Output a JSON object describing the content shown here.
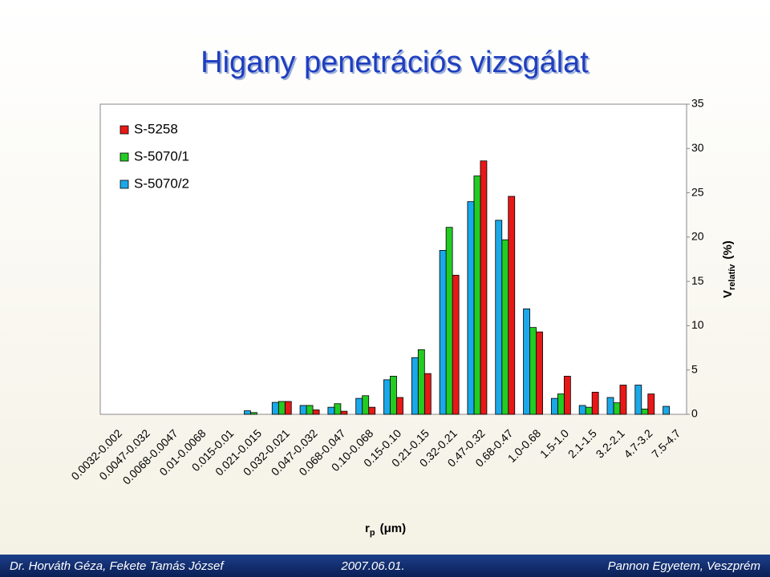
{
  "chart_data": {
    "type": "bar",
    "title": "Higany penetrációs vizsgálat",
    "categories": [
      "0.0032-0.002",
      "0.0047-0.032",
      "0.0068-0.0047",
      "0.01-0.0068",
      "0.015-0.01",
      "0.021-0.015",
      "0.032-0.021",
      "0.047-0.032",
      "0.068-0.047",
      "0.10-0.068",
      "0.15-0.10",
      "0.21-0.15",
      "0.32-0.21",
      "0.47-0.32",
      "0.68-0.47",
      "1.0-0.68",
      "1.5-1.0",
      "2.1-1.5",
      "3.2-2.1",
      "4.7-3.2",
      "7.5-4.7"
    ],
    "series": [
      {
        "name": "S-5258",
        "color": "#e81818",
        "values": [
          0,
          0,
          0,
          0,
          0,
          0,
          1.45,
          0.5,
          0.35,
          0.8,
          1.9,
          4.6,
          15.7,
          28.6,
          24.6,
          9.3,
          4.3,
          2.5,
          3.3,
          2.3,
          0
        ]
      },
      {
        "name": "S-5070/1",
        "color": "#22cc22",
        "values": [
          0,
          0,
          0,
          0,
          0,
          0.2,
          1.45,
          1.0,
          1.2,
          2.1,
          4.3,
          7.3,
          21.1,
          26.9,
          19.7,
          9.8,
          2.3,
          0.8,
          1.3,
          0.6,
          0
        ]
      },
      {
        "name": "S-5070/2",
        "color": "#1aa8e8",
        "values": [
          0,
          0,
          0,
          0,
          0,
          0.4,
          1.35,
          1.0,
          0.8,
          1.8,
          3.9,
          6.4,
          18.5,
          24.0,
          21.9,
          11.9,
          1.8,
          1.0,
          1.9,
          3.3,
          0.9
        ]
      }
    ],
    "ylim": [
      0,
      35
    ],
    "yticks": [
      0,
      5,
      10,
      15,
      20,
      25,
      30,
      35
    ],
    "x_label": {
      "main": "r",
      "sub": "p",
      "unit": "(μm)"
    },
    "y_label": {
      "main": "V",
      "sub": "relatív",
      "unit": "(%)"
    },
    "legend": "top-left"
  },
  "footer": {
    "authors": "Dr. Horváth Géza, Fekete Tamás József",
    "date": "2007.06.01.",
    "institution": "Pannon Egyetem, Veszprém"
  }
}
